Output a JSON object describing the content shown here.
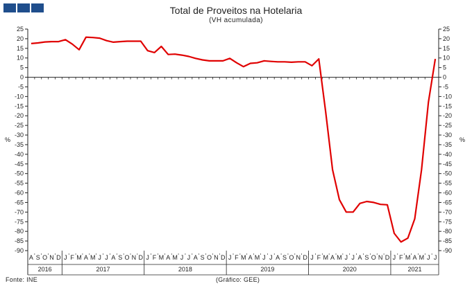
{
  "header": {
    "title": "Total de Proveitos na Hotelaria",
    "subtitle": "(VH acumulada)",
    "brand_color": "#1f4e8c"
  },
  "footer": {
    "source": "Fonte: INE",
    "credit": "(Gráfico: GEE)"
  },
  "chart_data": {
    "type": "line",
    "title": "Total de Proveitos na Hotelaria",
    "subtitle": "(VH acumulada)",
    "ylabel_left": "%",
    "ylabel_right": "%",
    "ylim": [
      -90,
      25
    ],
    "yticks": [
      25,
      20,
      15,
      10,
      5,
      0,
      -5,
      -10,
      -15,
      -20,
      -25,
      -30,
      -35,
      -40,
      -45,
      -50,
      -55,
      -60,
      -65,
      -70,
      -75,
      -80,
      -85,
      -90
    ],
    "grid": false,
    "line_color": "#e00000",
    "month_labels": [
      "A",
      "S",
      "O",
      "N",
      "D",
      "J",
      "F",
      "M",
      "A",
      "M",
      "J",
      "J",
      "A",
      "S",
      "O",
      "N",
      "D",
      "J",
      "F",
      "M",
      "A",
      "M",
      "J",
      "J",
      "A",
      "S",
      "O",
      "N",
      "D",
      "J",
      "F",
      "M",
      "A",
      "M",
      "J",
      "J",
      "A",
      "S",
      "O",
      "N",
      "D",
      "J",
      "F",
      "M",
      "A",
      "M",
      "J",
      "J",
      "A",
      "S",
      "O",
      "N",
      "D",
      "J",
      "F",
      "M",
      "A",
      "M",
      "J",
      "J"
    ],
    "years": [
      {
        "label": "2016",
        "first_month": 0,
        "count": 5
      },
      {
        "label": "2017",
        "first_month": 5,
        "count": 12
      },
      {
        "label": "2018",
        "first_month": 17,
        "count": 12
      },
      {
        "label": "2019",
        "first_month": 29,
        "count": 12
      },
      {
        "label": "2020",
        "first_month": 41,
        "count": 12
      },
      {
        "label": "2021",
        "first_month": 53,
        "count": 7
      }
    ],
    "series": [
      {
        "values": [
          17.5,
          17.8,
          18.3,
          18.5,
          18.5,
          19.5,
          17.2,
          14.3,
          20.8,
          20.6,
          20.3,
          19.0,
          18.2,
          18.5,
          18.7,
          18.7,
          18.7,
          13.8,
          12.8,
          16.0,
          11.8,
          12.0,
          11.5,
          10.8,
          9.8,
          9.0,
          8.5,
          8.5,
          8.5,
          9.8,
          7.5,
          5.5,
          7.2,
          7.5,
          8.5,
          8.2,
          8.0,
          8.0,
          7.8,
          8.0,
          8.0,
          6.0,
          9.5,
          -18.0,
          -48.0,
          -63.5,
          -70.0,
          -70.0,
          -65.5,
          -64.5,
          -65.0,
          -66.0,
          -66.2,
          -81.0,
          -85.5,
          -83.5,
          -73.5,
          -48.0,
          -13.0,
          9.5
        ]
      }
    ]
  }
}
